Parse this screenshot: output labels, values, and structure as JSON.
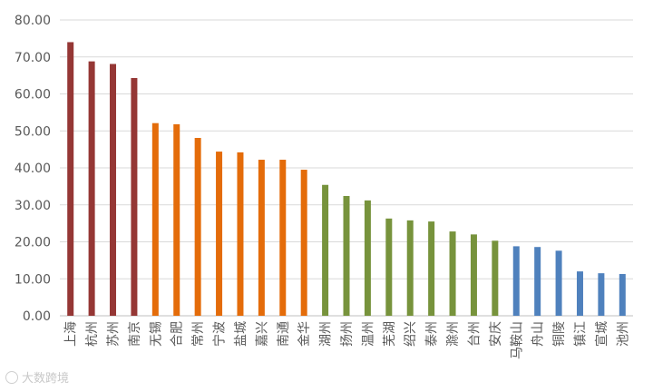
{
  "chart_data": {
    "type": "bar",
    "title": "",
    "xlabel": "",
    "ylabel": "",
    "ylim": [
      0,
      80
    ],
    "yticks": [
      "0.00",
      "10.00",
      "20.00",
      "30.00",
      "40.00",
      "50.00",
      "60.00",
      "70.00",
      "80.00"
    ],
    "grid": true,
    "legend": "none",
    "categories": [
      "上海",
      "杭州",
      "苏州",
      "南京",
      "无锡",
      "合肥",
      "常州",
      "宁波",
      "盐城",
      "嘉兴",
      "南通",
      "金华",
      "湖州",
      "扬州",
      "温州",
      "芜湖",
      "绍兴",
      "泰州",
      "滁州",
      "台州",
      "安庆",
      "马鞍山",
      "舟山",
      "铜陵",
      "镇江",
      "宣城",
      "池州"
    ],
    "values": [
      74.0,
      68.8,
      68.1,
      64.3,
      52.1,
      51.8,
      48.1,
      44.4,
      44.2,
      42.2,
      42.2,
      39.5,
      35.4,
      32.4,
      31.2,
      26.3,
      25.8,
      25.5,
      22.8,
      22.0,
      20.3,
      18.8,
      18.6,
      17.6,
      12.0,
      11.5,
      11.3
    ],
    "bar_colors": [
      "#953735",
      "#953735",
      "#953735",
      "#953735",
      "#E46C0A",
      "#E46C0A",
      "#E46C0A",
      "#E46C0A",
      "#E46C0A",
      "#E46C0A",
      "#E46C0A",
      "#E46C0A",
      "#77933C",
      "#77933C",
      "#77933C",
      "#77933C",
      "#77933C",
      "#77933C",
      "#77933C",
      "#77933C",
      "#77933C",
      "#4F81BD",
      "#4F81BD",
      "#4F81BD",
      "#4F81BD",
      "#4F81BD",
      "#4F81BD"
    ],
    "gridline_color": "#d9d9d9",
    "axis_color": "#bfbfbf"
  },
  "watermark": {
    "text": "大数跨境",
    "icon": "logo-circle-icon"
  }
}
